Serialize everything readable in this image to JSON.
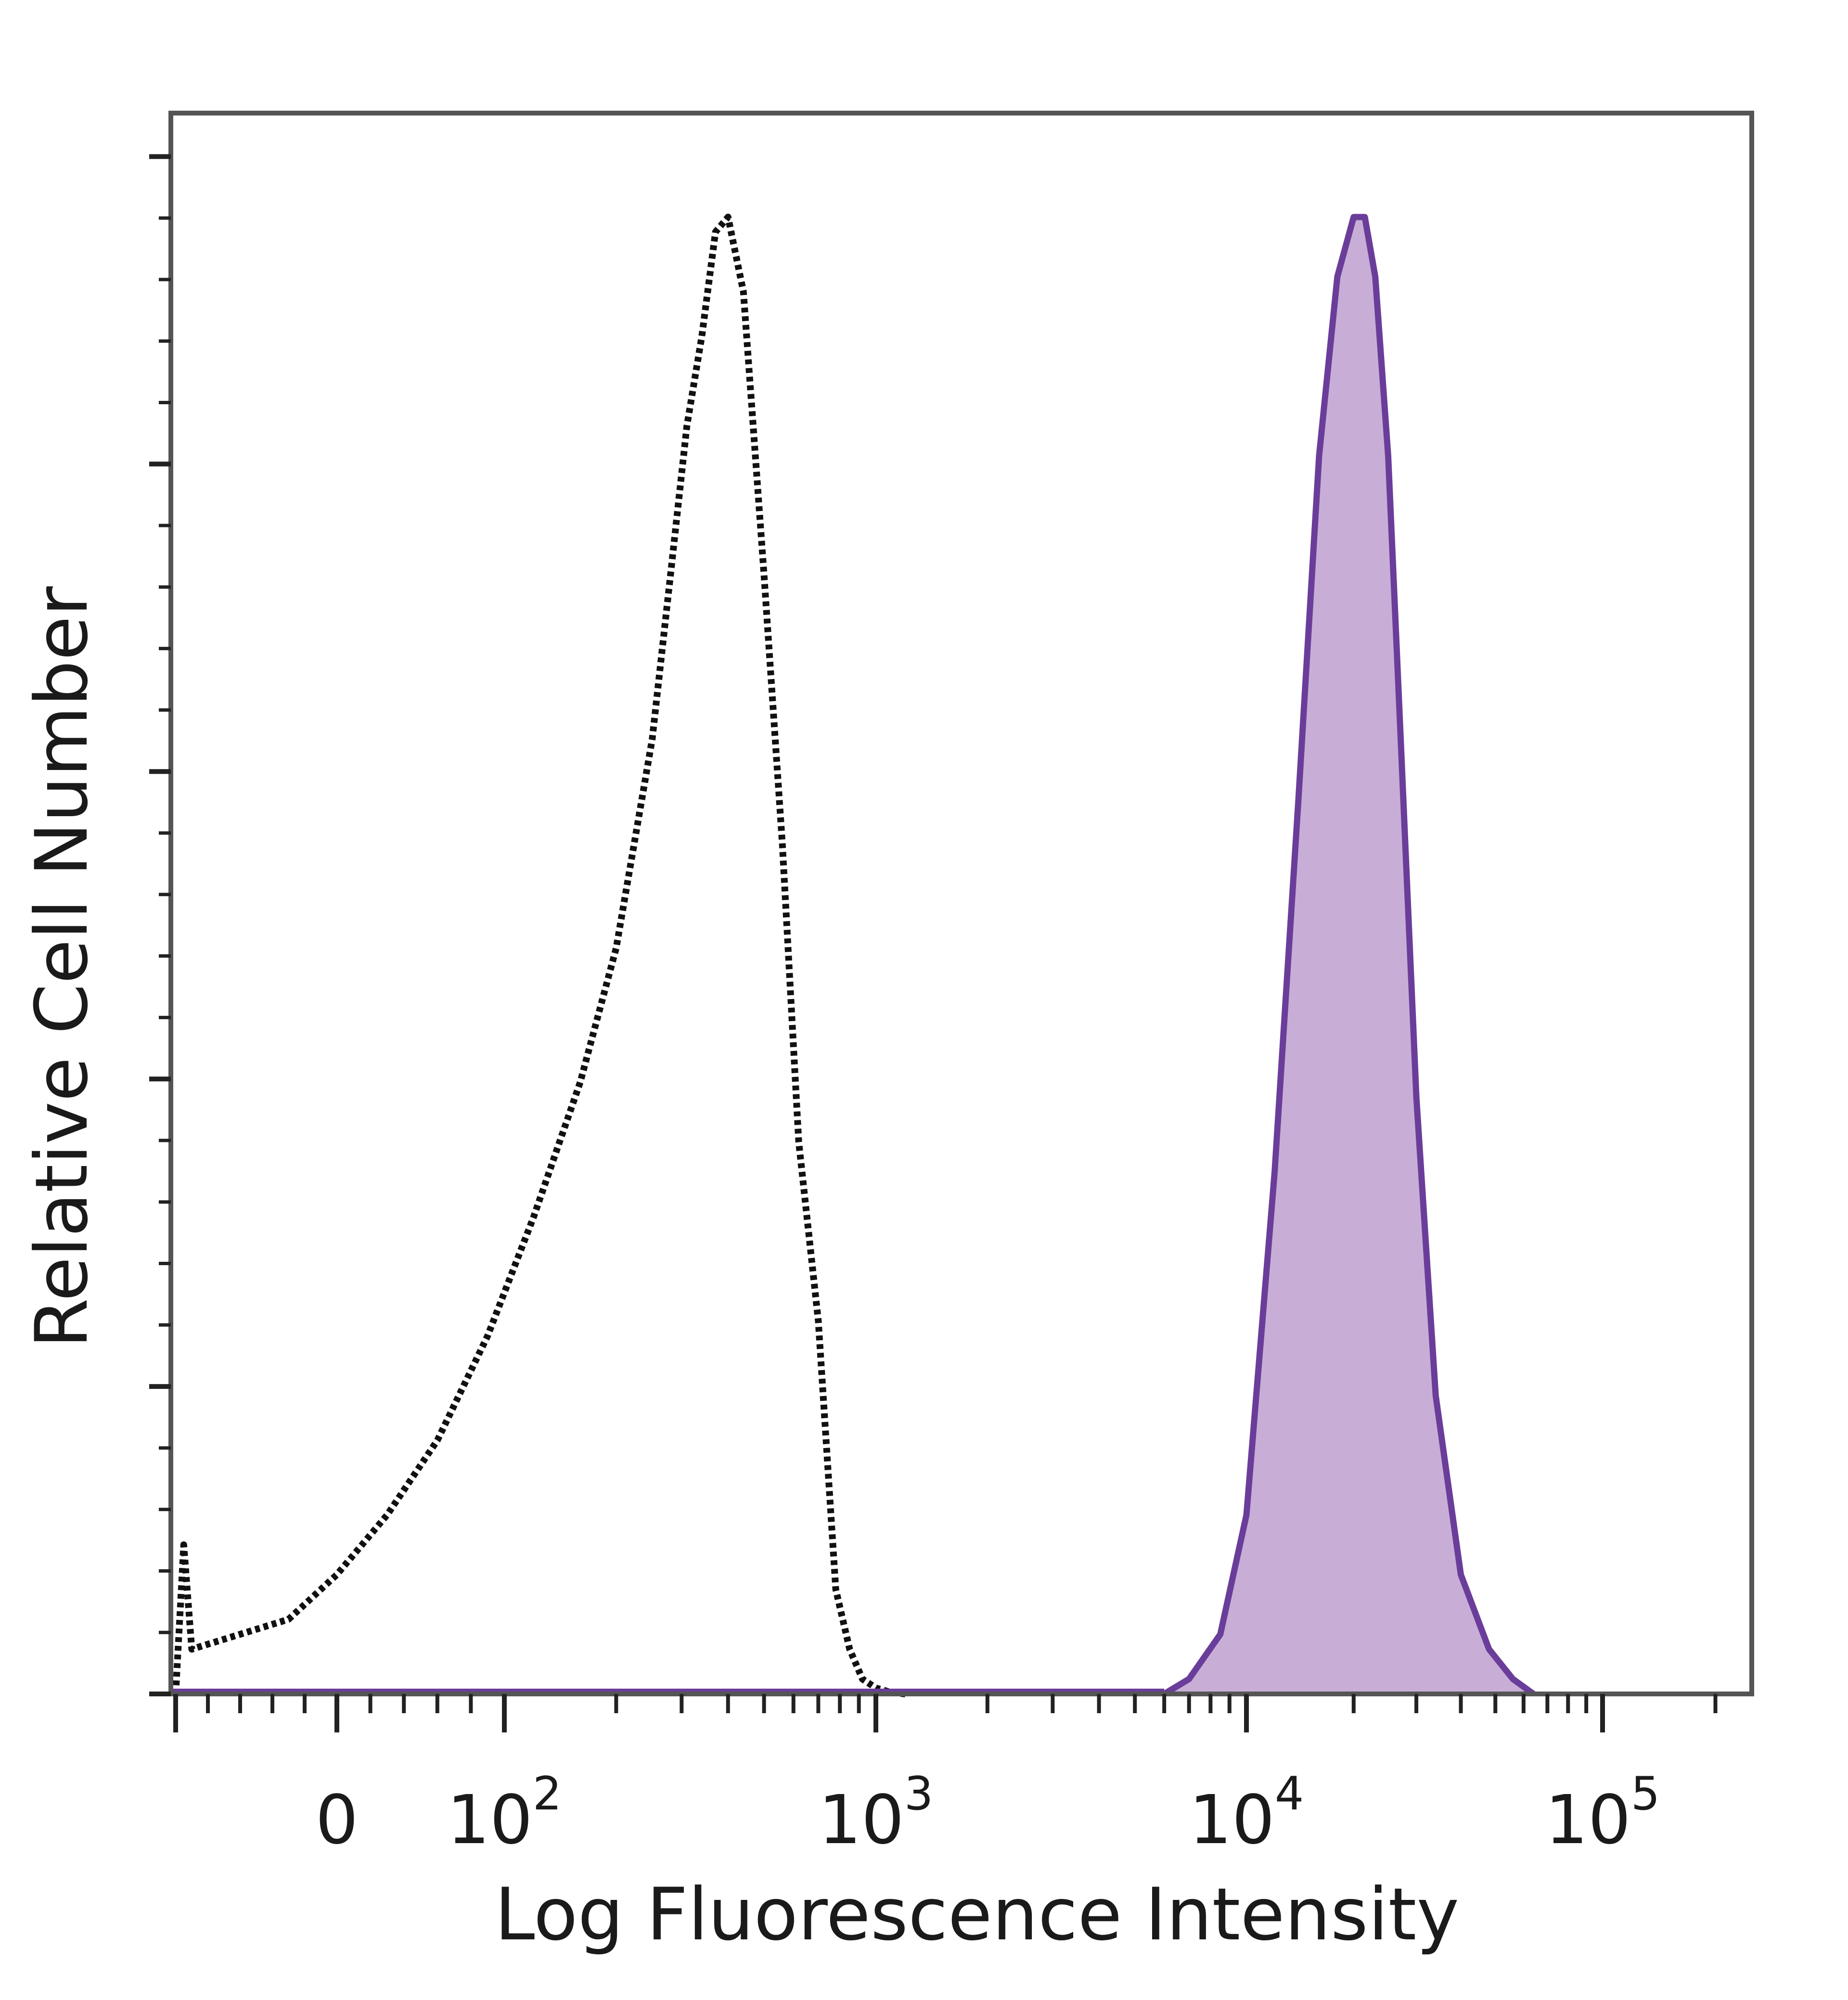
{
  "chart_data": {
    "type": "area",
    "xlabel": "Log Fluorescence Intensity",
    "ylabel": "Relative Cell Number",
    "x_scale": "biexponential",
    "xlim": [
      -100,
      250000
    ],
    "ylim": [
      0,
      100
    ],
    "grid": false,
    "x_ticks": [
      {
        "value": 0,
        "base": "0",
        "exp": ""
      },
      {
        "value": 100,
        "base": "10",
        "exp": "2"
      },
      {
        "value": 1000,
        "base": "10",
        "exp": "3"
      },
      {
        "value": 10000,
        "base": "10",
        "exp": "4"
      },
      {
        "value": 100000,
        "base": "10",
        "exp": "5"
      }
    ],
    "series": [
      {
        "style": "dotted",
        "color": "#111111",
        "filled": false,
        "x": [
          -100,
          -95,
          -90,
          -60,
          -30,
          0,
          30,
          60,
          90,
          120,
          160,
          200,
          250,
          280,
          310,
          340,
          370,
          400,
          440,
          500,
          560,
          620,
          700,
          780,
          850,
          920,
          1000,
          1100,
          1200
        ],
        "y": [
          0,
          10,
          3,
          4,
          5,
          8,
          12,
          17,
          24,
          32,
          41,
          50,
          64,
          75,
          85,
          91,
          98,
          99,
          94,
          75,
          57,
          37,
          25,
          7,
          3,
          1,
          0.4,
          0.1,
          0
        ]
      },
      {
        "style": "solid",
        "color": "#6a3d9a",
        "fill": "#c8aed6",
        "filled": true,
        "x": [
          6000,
          7000,
          8500,
          10000,
          12000,
          14000,
          16000,
          18000,
          20000,
          21500,
          23000,
          25000,
          27000,
          30000,
          34000,
          40000,
          48000,
          56000,
          64000
        ],
        "y": [
          0,
          1,
          4,
          12,
          35,
          60,
          83,
          95,
          99,
          99,
          95,
          83,
          65,
          40,
          20,
          8,
          3,
          1,
          0
        ]
      }
    ]
  }
}
